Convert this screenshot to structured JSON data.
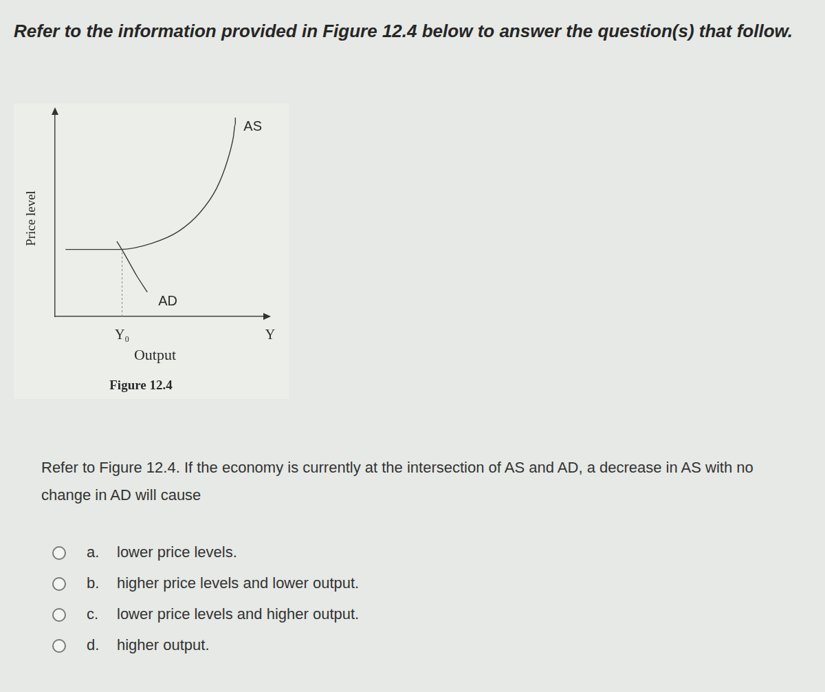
{
  "header": {
    "text": "Refer to the information provided in Figure 12.4 below to answer the question(s) that follow."
  },
  "chart_data": {
    "type": "line",
    "caption": "Figure 12.4",
    "x_label": "Output",
    "y_label": "Price level",
    "x_end_label": "Y",
    "xlim": [
      0,
      10
    ],
    "ylim": [
      0,
      10
    ],
    "tick_labels": false,
    "grid": false,
    "series": [
      {
        "name": "AS",
        "color": "#3a3a3a",
        "line_style": "solid",
        "marker": "none",
        "x": [
          0.5,
          3.1,
          4.6,
          5.9,
          6.9,
          7.7,
          8.2,
          8.5,
          8.6,
          8.6
        ],
        "values": [
          3.3,
          3.3,
          3.6,
          4.2,
          5.1,
          6.3,
          7.6,
          8.8,
          9.5,
          9.8
        ]
      },
      {
        "name": "AD",
        "color": "#3a3a3a",
        "line_style": "solid",
        "marker": "none",
        "x": [
          2.95,
          3.3,
          3.9,
          4.4
        ],
        "values": [
          3.7,
          3.1,
          2.0,
          1.2
        ]
      }
    ],
    "marker_line": {
      "label": "Y₀",
      "x": 3.2,
      "y": 3.3,
      "line_style": "dashed",
      "color": "#8a8a8a"
    }
  },
  "question": "Refer to Figure 12.4. If the economy is currently at the intersection of AS and AD, a decrease in AS with no change in AD will cause",
  "options": [
    {
      "letter": "a.",
      "text": "lower price levels."
    },
    {
      "letter": "b.",
      "text": "higher price levels and lower output."
    },
    {
      "letter": "c.",
      "text": "lower price levels and higher output."
    },
    {
      "letter": "d.",
      "text": "higher output."
    }
  ]
}
